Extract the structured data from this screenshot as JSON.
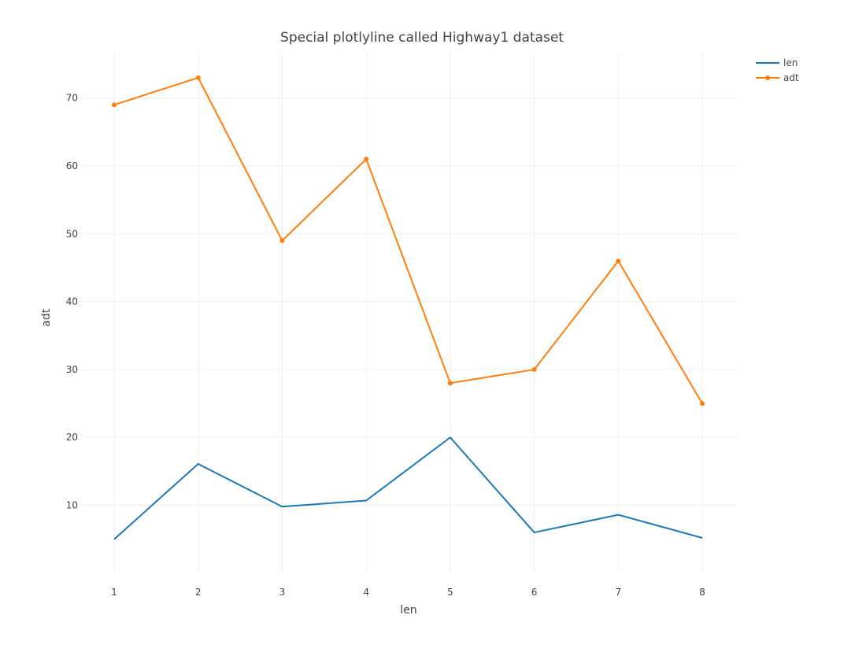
{
  "chart_data": {
    "type": "line",
    "title": "Special plotlyline called Highway1 dataset",
    "xlabel": "len",
    "ylabel": "adt",
    "x": [
      1,
      2,
      3,
      4,
      5,
      6,
      7,
      8
    ],
    "xlim": [
      1,
      8
    ],
    "ylim": [
      0.1,
      76.8
    ],
    "yticks": [
      10,
      20,
      30,
      40,
      50,
      60,
      70
    ],
    "xticks": [
      1,
      2,
      3,
      4,
      5,
      6,
      7,
      8
    ],
    "grid": true,
    "legend_position": "top-right",
    "series": [
      {
        "name": "len",
        "values": [
          5.0,
          16.1,
          9.8,
          10.7,
          20.0,
          6.0,
          8.6,
          5.2
        ],
        "color": "#1f77b4",
        "markers": false
      },
      {
        "name": "adt",
        "values": [
          69,
          73,
          49,
          61,
          28,
          30,
          46,
          25
        ],
        "color": "#ff7f0e",
        "markers": true
      }
    ]
  }
}
